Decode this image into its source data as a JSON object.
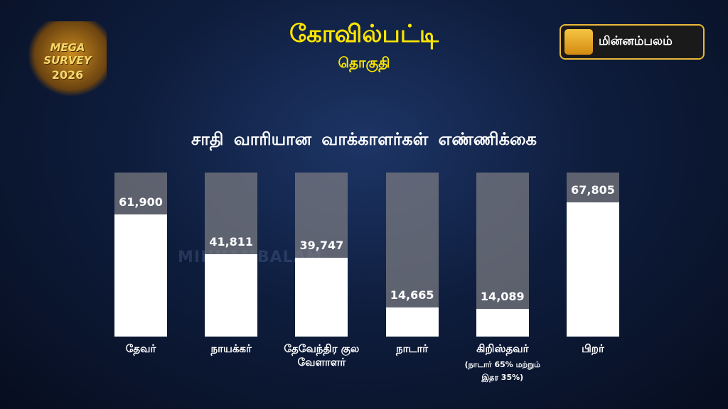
{
  "header": {
    "constituency": "கோவில்பட்டி",
    "subtitle": "தொகுதி",
    "brand": "மின்னம்பலம்",
    "badge": {
      "line1": "MEGA SURVEY",
      "line2": "2026"
    },
    "watermark": "MINNAMBALAM"
  },
  "chart_data": {
    "type": "bar",
    "title": "சாதி வாரியான வாக்காளர்கள்  எண்ணிக்கை",
    "categories": [
      "தேவர்",
      "நாயக்கர்",
      "தேவேந்திர குல\nவேளாளர்",
      "நாடார்",
      "கிறிஸ்தவர்",
      "பிறர்"
    ],
    "values": [
      61900,
      41811,
      39747,
      14665,
      14089,
      67805
    ],
    "value_labels": [
      "61,900",
      "41,811",
      "39,747",
      "14,665",
      "14,089",
      "67,805"
    ],
    "note": "(நாடார் 65% மற்றும்\nஇதர 35%)",
    "color": "#ffffff",
    "ylim": [
      0,
      83000
    ]
  }
}
